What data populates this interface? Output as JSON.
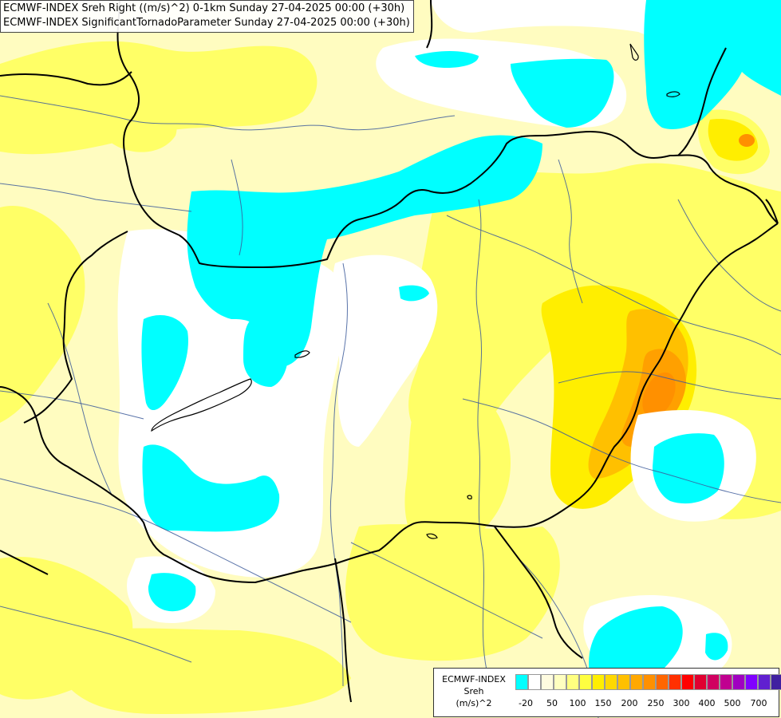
{
  "titles": {
    "line1": "ECMWF-INDEX Sreh Right ((m/s)^2) 0-1km Sunday 27-04-2025 00:00 (+30h)",
    "line2": "ECMWF-INDEX SignificantTornadoParameter Sunday 27-04-2025 00:00 (+30h)"
  },
  "legend": {
    "line1": "ECMWF-INDEX",
    "line2": "Sreh",
    "line3": "(m/s)^2",
    "colors": [
      "#00ffff",
      "#ffffff",
      "#fffce0",
      "#ffffc0",
      "#ffff80",
      "#ffff40",
      "#ffee00",
      "#ffd800",
      "#ffc000",
      "#ffa800",
      "#ff9000",
      "#ff6600",
      "#ff3000",
      "#ff0000",
      "#e00030",
      "#d00060",
      "#c00090",
      "#a000c0",
      "#8000ff",
      "#6020d0",
      "#4020a0",
      "#000080"
    ],
    "ticks": [
      "-20",
      "50",
      "100",
      "150",
      "200",
      "250",
      "300",
      "400",
      "500",
      "700"
    ]
  },
  "colors": {
    "negative": "#00ffff",
    "neutral": "#ffffff",
    "pale_yellow": "#fffcc0",
    "yellow": "#ffff66",
    "bright_yellow": "#ffee00",
    "gold": "#ffd000",
    "orange": "#ffa800",
    "dark_orange": "#ff8c00",
    "border": "#000000",
    "river": "#3c5a9a"
  }
}
